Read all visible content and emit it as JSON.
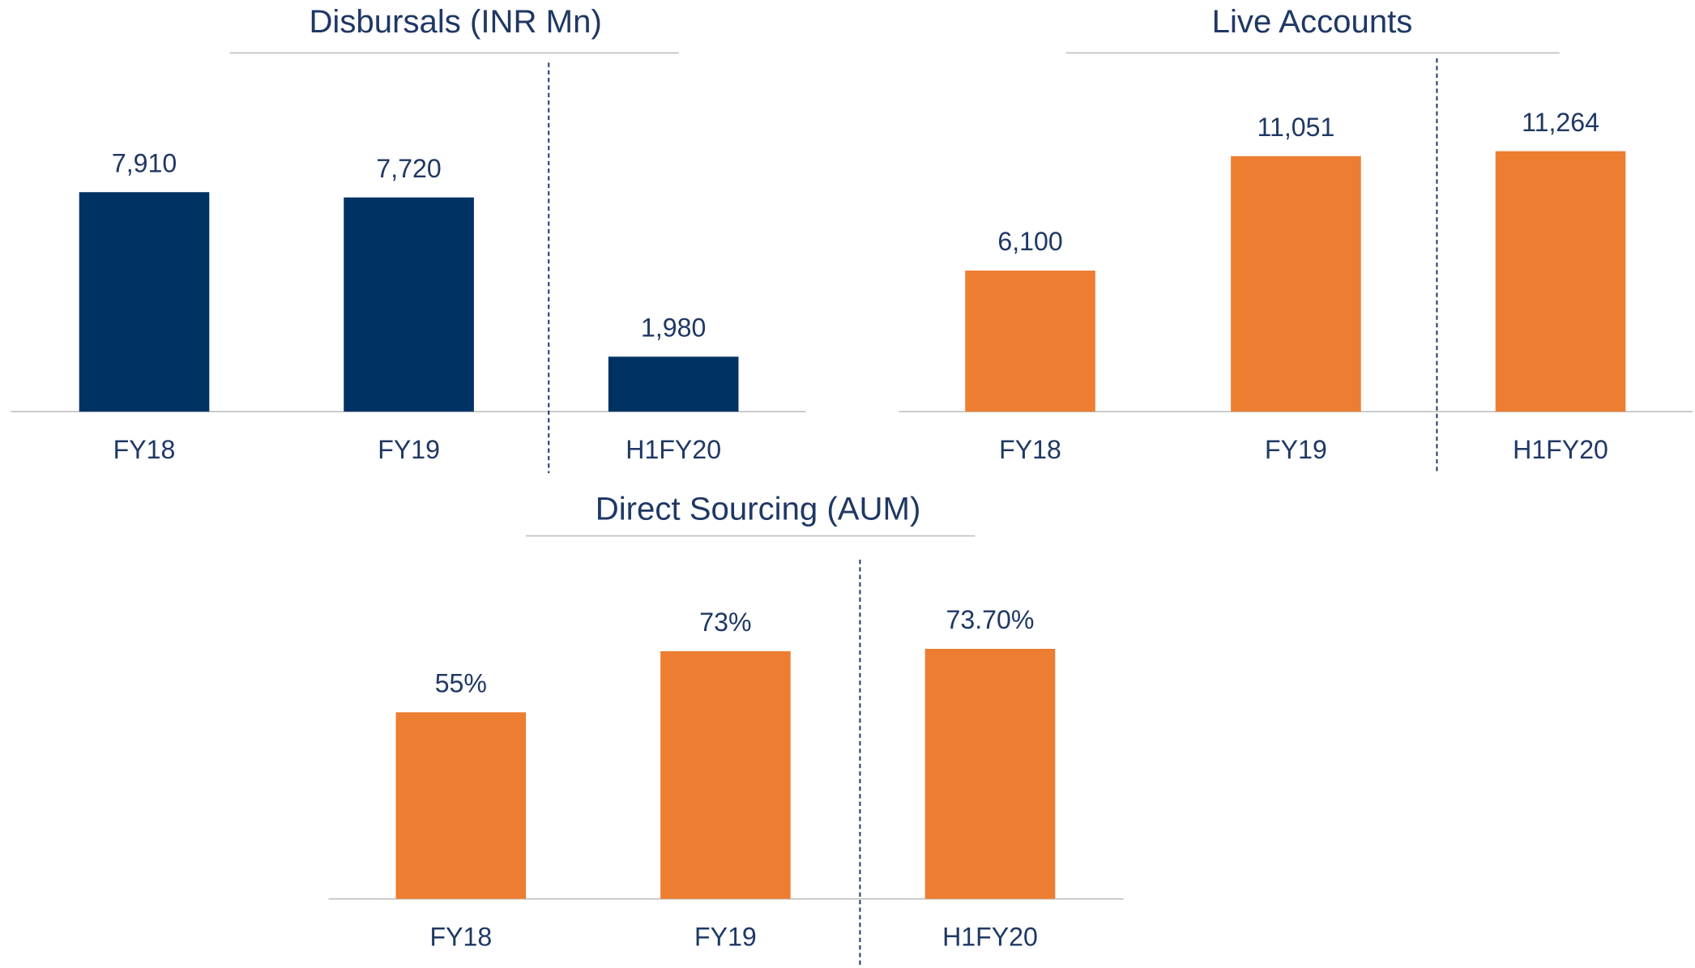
{
  "chart_data": [
    {
      "type": "bar",
      "title": "Disbursals (INR Mn)",
      "categories": [
        "FY18",
        "FY19",
        "H1FY20"
      ],
      "values": [
        7910,
        7720,
        1980
      ],
      "value_labels": [
        "7,910",
        "7,720",
        "1,980"
      ],
      "color": "#003263",
      "ylim": [
        0,
        12500
      ]
    },
    {
      "type": "bar",
      "title": "Live Accounts",
      "categories": [
        "FY18",
        "FY19",
        "H1FY20"
      ],
      "values": [
        6100,
        11051,
        11264
      ],
      "value_labels": [
        "6,100",
        "11,051",
        "11,264"
      ],
      "color": "#ed7d31",
      "ylim": [
        0,
        15000
      ]
    },
    {
      "type": "bar",
      "title": "Direct Sourcing (AUM)",
      "categories": [
        "FY18",
        "FY19",
        "H1FY20"
      ],
      "values": [
        55,
        73,
        73.7
      ],
      "value_labels": [
        "55%",
        "73%",
        "73.70%"
      ],
      "color": "#ed7d31",
      "ylim": [
        0,
        100
      ]
    }
  ]
}
